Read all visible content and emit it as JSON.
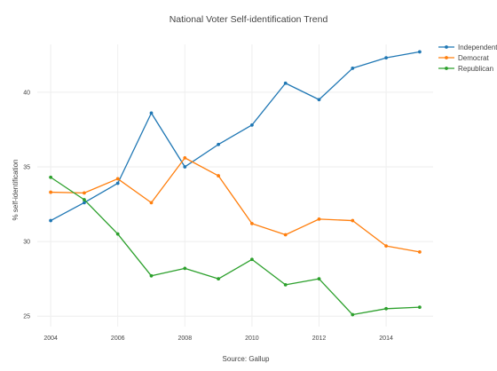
{
  "chart_data": {
    "type": "line",
    "title": "National Voter Self-identification Trend",
    "xlabel": "Source: Gallup",
    "ylabel": "% self-identification",
    "x": [
      2004,
      2005,
      2006,
      2007,
      2008,
      2009,
      2010,
      2011,
      2012,
      2013,
      2014,
      2015
    ],
    "xlim": [
      2003.6,
      2015.4
    ],
    "ylim": [
      24.3,
      43.2
    ],
    "x_ticks": [
      2004,
      2006,
      2008,
      2010,
      2012,
      2014
    ],
    "y_ticks": [
      25,
      30,
      35,
      40
    ],
    "grid": true,
    "legend_position": "top-right",
    "series": [
      {
        "name": "Independent",
        "color": "#1f77b4",
        "values": [
          31.4,
          32.6,
          33.9,
          38.6,
          35.0,
          36.5,
          37.8,
          40.6,
          39.5,
          41.6,
          42.3,
          42.7
        ]
      },
      {
        "name": "Democrat",
        "color": "#ff7f0e",
        "values": [
          33.3,
          33.25,
          34.2,
          32.6,
          35.6,
          34.4,
          31.2,
          30.45,
          31.5,
          31.4,
          29.7,
          29.3
        ]
      },
      {
        "name": "Republican",
        "color": "#2ca02c",
        "values": [
          34.3,
          32.8,
          30.5,
          27.7,
          28.2,
          27.5,
          28.8,
          27.1,
          27.5,
          25.1,
          25.5,
          25.6
        ]
      }
    ]
  }
}
